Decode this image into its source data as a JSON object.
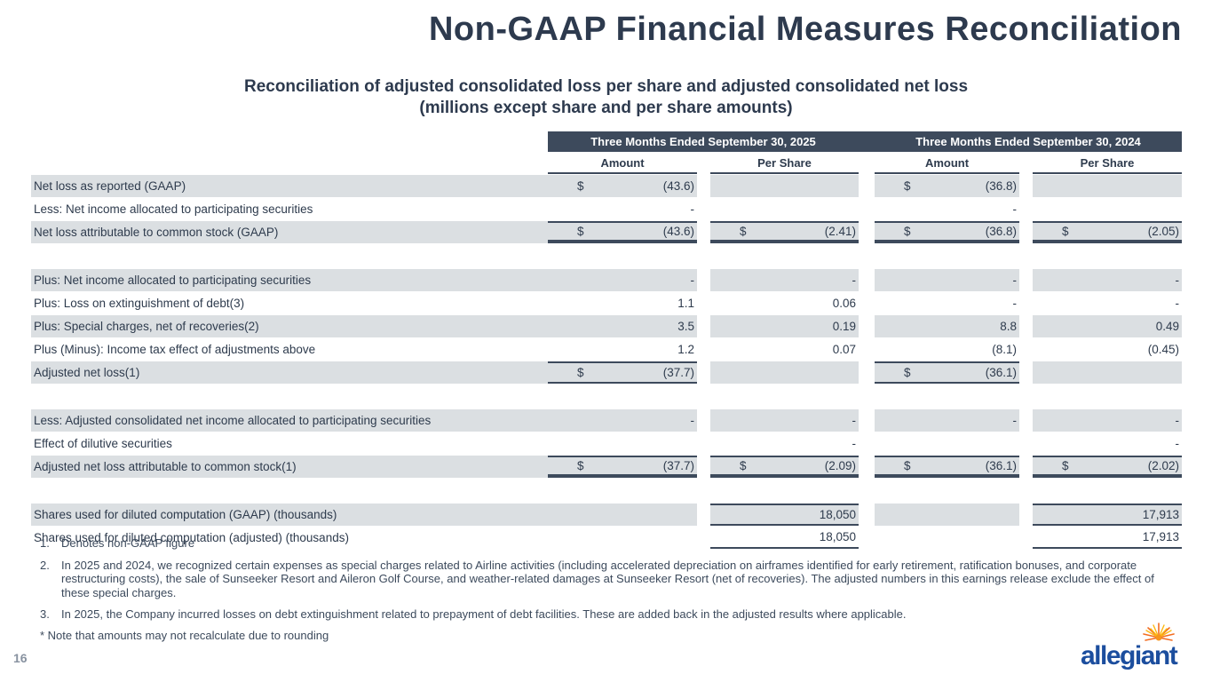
{
  "slide": {
    "title": "Non-GAAP Financial Measures Reconciliation",
    "subtitle_line1": "Reconciliation of adjusted consolidated loss per share and adjusted consolidated net loss",
    "subtitle_line2": "(millions except share and per share amounts)",
    "page_number": "16",
    "logo_text": "allegiant"
  },
  "colors": {
    "header_band": "#3d4a5c",
    "row_gray": "#dbdfe2",
    "text_navy": "#2e3b4d",
    "logo_blue": "#1c4e9e",
    "logo_orange": "#f7941d",
    "logo_yellow": "#fdb813"
  },
  "table": {
    "groups": [
      "Three Months Ended September 30, 2025",
      "Three Months Ended September 30, 2024"
    ],
    "columns": [
      "Amount",
      "Per Share",
      "Amount",
      "Per Share"
    ],
    "rows": [
      {
        "label": "Net loss as reported (GAAP)",
        "bg": "gray",
        "cells": [
          {
            "d": "$",
            "v": "(43.6)"
          },
          {},
          {
            "d": "$",
            "v": "(36.8)"
          },
          {}
        ]
      },
      {
        "label": "Less: Net income allocated to participating securities",
        "bg": "white",
        "cells": [
          {
            "v": "-"
          },
          {},
          {
            "v": "-"
          },
          {}
        ]
      },
      {
        "label": "Net loss attributable to common stock (GAAP)",
        "bg": "gray",
        "cells": [
          {
            "d": "$",
            "v": "(43.6)",
            "t": true,
            "b": 2
          },
          {
            "d": "$",
            "v": "(2.41)",
            "t": true,
            "b": 2
          },
          {
            "d": "$",
            "v": "(36.8)",
            "t": true,
            "b": 2
          },
          {
            "d": "$",
            "v": "(2.05)",
            "t": true,
            "b": 2
          }
        ]
      },
      {
        "spacer": true
      },
      {
        "label": "Plus: Net income allocated to participating securities",
        "bg": "gray",
        "cells": [
          {
            "v": "-"
          },
          {
            "v": "-"
          },
          {
            "v": "-"
          },
          {
            "v": "-"
          }
        ]
      },
      {
        "label": "Plus: Loss on extinguishment of debt(3)",
        "bg": "white",
        "cells": [
          {
            "v": "1.1"
          },
          {
            "v": "0.06"
          },
          {
            "v": "-"
          },
          {
            "v": "-"
          }
        ]
      },
      {
        "label": "Plus: Special charges, net of recoveries(2)",
        "bg": "gray",
        "cells": [
          {
            "v": "3.5"
          },
          {
            "v": "0.19"
          },
          {
            "v": "8.8"
          },
          {
            "v": "0.49"
          }
        ]
      },
      {
        "label": "Plus (Minus): Income tax effect of adjustments above",
        "bg": "white",
        "cells": [
          {
            "v": "1.2"
          },
          {
            "v": "0.07"
          },
          {
            "v": "(8.1)"
          },
          {
            "v": "(0.45)"
          }
        ]
      },
      {
        "label": "Adjusted net loss(1)",
        "bg": "gray",
        "cells": [
          {
            "d": "$",
            "v": "(37.7)",
            "t": true,
            "b": 1
          },
          {},
          {
            "d": "$",
            "v": "(36.1)",
            "t": true,
            "b": 1
          },
          {}
        ]
      },
      {
        "spacer": true
      },
      {
        "label": "Less: Adjusted consolidated net income allocated to participating securities",
        "bg": "gray",
        "cells": [
          {
            "v": "-"
          },
          {
            "v": "-"
          },
          {
            "v": "-"
          },
          {
            "v": "-"
          }
        ]
      },
      {
        "label": "Effect of dilutive securities",
        "bg": "white",
        "cells": [
          {},
          {
            "v": "-"
          },
          {},
          {
            "v": "-"
          }
        ]
      },
      {
        "label": "Adjusted net loss attributable to common stock(1)",
        "bg": "gray",
        "cells": [
          {
            "d": "$",
            "v": "(37.7)",
            "t": true,
            "b": 2
          },
          {
            "d": "$",
            "v": "(2.09)",
            "t": true,
            "b": 2
          },
          {
            "d": "$",
            "v": "(36.1)",
            "t": true,
            "b": 2
          },
          {
            "d": "$",
            "v": "(2.02)",
            "t": true,
            "b": 2
          }
        ]
      },
      {
        "spacer": true
      },
      {
        "label": "Shares used for diluted computation (GAAP) (thousands)",
        "bg": "gray",
        "cells": [
          {},
          {
            "v": "18,050",
            "t": true,
            "b": 1
          },
          {},
          {
            "v": "17,913",
            "t": true,
            "b": 1
          }
        ]
      },
      {
        "label": "Shares used for diluted computation (adjusted) (thousands)",
        "bg": "white",
        "cells": [
          {},
          {
            "v": "18,050",
            "b": 1
          },
          {},
          {
            "v": "17,913",
            "b": 1
          }
        ]
      }
    ]
  },
  "footnotes": [
    {
      "num": "1.",
      "text": "Denotes non-GAAP figure"
    },
    {
      "num": "2.",
      "text": "In 2025 and 2024, we recognized certain expenses as special charges related to Airline activities (including accelerated depreciation on airframes identified for early retirement, ratification bonuses, and corporate restructuring costs), the sale of Sunseeker Resort and Aileron Golf Course, and weather-related damages at Sunseeker Resort (net of recoveries). The adjusted numbers in this earnings release exclude the effect of these special charges."
    },
    {
      "num": "3.",
      "text": "In 2025, the Company incurred losses on debt extinguishment related to prepayment of debt facilities. These are added back in the adjusted results where applicable."
    }
  ],
  "note": "* Note that amounts may not recalculate due to rounding"
}
